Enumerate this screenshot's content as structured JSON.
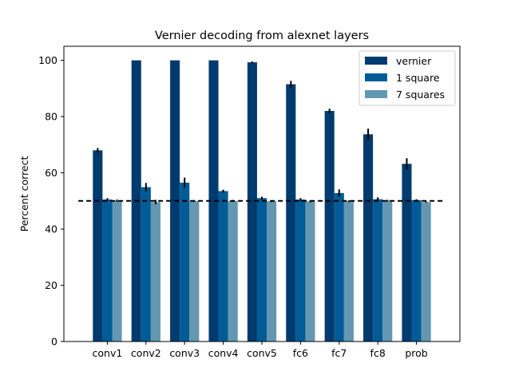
{
  "chart_data": {
    "type": "bar",
    "title": "Vernier decoding from alexnet layers",
    "xlabel": "",
    "ylabel": "Percent correct",
    "ylim": [
      0,
      105
    ],
    "yticks": [
      0,
      20,
      40,
      60,
      80,
      100
    ],
    "categories": [
      "conv1",
      "conv2",
      "conv3",
      "conv4",
      "conv5",
      "fc6",
      "fc7",
      "fc8",
      "prob"
    ],
    "series": [
      {
        "name": "vernier",
        "color": "#003b6f",
        "values": [
          68,
          100,
          100,
          100,
          99.3,
          91.5,
          82,
          73.7,
          63.2
        ],
        "errors": [
          0.8,
          0,
          0,
          0,
          0.3,
          1.2,
          0.8,
          2.0,
          2.0
        ]
      },
      {
        "name": "1 square",
        "color": "#005b96",
        "values": [
          50.5,
          54.9,
          56.5,
          53.5,
          51,
          50.5,
          52.8,
          50.6,
          50.3
        ],
        "errors": [
          0.5,
          1.5,
          1.8,
          0.5,
          0.5,
          0.5,
          1.3,
          0.7,
          0.3
        ]
      },
      {
        "name": "7 squares",
        "color": "#6497b1",
        "values": [
          50.1,
          49.6,
          50,
          50,
          49.9,
          49.8,
          49.9,
          50.1,
          49.6
        ],
        "errors": [
          0.4,
          0.8,
          0.3,
          0.3,
          0.3,
          0.3,
          0.3,
          0.3,
          0.2
        ]
      }
    ],
    "reference_line": {
      "y": 50,
      "style": "dashed",
      "color": "#000000"
    },
    "grid": false,
    "legend_position": "top-right"
  }
}
